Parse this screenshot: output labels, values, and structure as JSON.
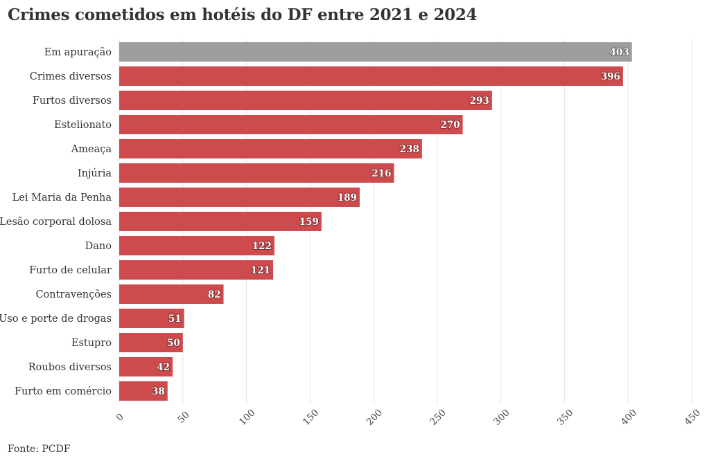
{
  "title": "Crimes cometidos em hotéis do DF entre 2021 e 2024",
  "source": "Fonte: PCDF",
  "colors": {
    "highlight": "#9e9e9e",
    "bar": "#cd4a4d",
    "grid": "#e6e6e6"
  },
  "chart_data": {
    "type": "bar",
    "orientation": "horizontal",
    "categories": [
      "Em apuração",
      "Crimes diversos",
      "Furtos diversos",
      "Estelionato",
      "Ameaça",
      "Injúria",
      "Lei Maria da Penha",
      "Lesão corporal dolosa",
      "Dano",
      "Furto de celular",
      "Contravenções",
      "Uso e porte de drogas",
      "Estupro",
      "Roubos diversos",
      "Furto em comércio"
    ],
    "values": [
      403,
      396,
      293,
      270,
      238,
      216,
      189,
      159,
      122,
      121,
      82,
      51,
      50,
      42,
      38
    ],
    "highlighted_category": "Em apuração",
    "xlim": [
      0,
      450
    ],
    "xticks": [
      0,
      50,
      100,
      150,
      200,
      250,
      300,
      350,
      400,
      450
    ],
    "grid": true,
    "data_labels": true
  }
}
